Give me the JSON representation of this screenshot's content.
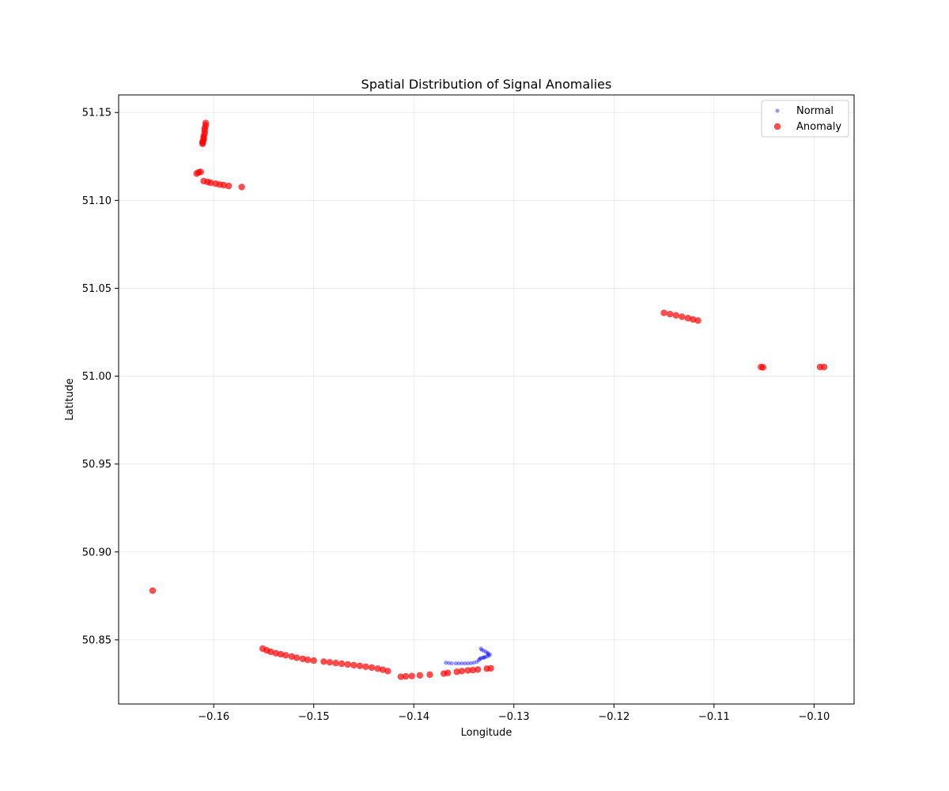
{
  "chart_data": {
    "type": "scatter",
    "title": "Spatial Distribution of Signal Anomalies",
    "xlabel": "Longitude",
    "ylabel": "Latitude",
    "xlim": [
      -0.1695,
      -0.096
    ],
    "ylim": [
      50.8135,
      51.16
    ],
    "xticks": [
      -0.16,
      -0.15,
      -0.14,
      -0.13,
      -0.12,
      -0.11,
      -0.1
    ],
    "xtick_labels": [
      "−0.16",
      "−0.15",
      "−0.14",
      "−0.13",
      "−0.12",
      "−0.11",
      "−0.10"
    ],
    "yticks": [
      50.85,
      50.9,
      50.95,
      51.0,
      51.05,
      51.1,
      51.15
    ],
    "ytick_labels": [
      "50.85",
      "50.90",
      "50.95",
      "51.00",
      "51.05",
      "51.10",
      "51.15"
    ],
    "grid": true,
    "legend": "top-right",
    "series": [
      {
        "name": "Normal",
        "color": "#0000ff",
        "alpha": 0.4,
        "marker_size": "small",
        "x": [
          -0.1368,
          -0.1365,
          -0.1362,
          -0.1358,
          -0.1355,
          -0.1352,
          -0.1349,
          -0.1346,
          -0.1343,
          -0.134,
          -0.1337,
          -0.1335,
          -0.1334,
          -0.1333,
          -0.1331,
          -0.1329,
          -0.1327,
          -0.1325,
          -0.1324,
          -0.1326,
          -0.1328,
          -0.133,
          -0.1332,
          -0.1333,
          -0.1326,
          -0.133
        ],
        "y": [
          50.837,
          50.8368,
          50.8366,
          50.8366,
          50.8366,
          50.8366,
          50.8366,
          50.8366,
          50.8367,
          50.837,
          50.8375,
          50.8385,
          50.8392,
          50.8395,
          50.8398,
          50.8401,
          50.8405,
          50.841,
          50.8416,
          50.8425,
          50.8432,
          50.8438,
          50.8443,
          50.845,
          50.842,
          50.84
        ]
      },
      {
        "name": "Anomaly",
        "color": "#ff0000",
        "alpha": 0.7,
        "marker_size": "large",
        "x": [
          -0.1608,
          -0.1608,
          -0.1609,
          -0.1609,
          -0.1609,
          -0.161,
          -0.161,
          -0.161,
          -0.1611,
          -0.1611,
          -0.1611,
          -0.1617,
          -0.1615,
          -0.1613,
          -0.161,
          -0.1606,
          -0.1603,
          -0.1598,
          -0.1594,
          -0.159,
          -0.1585,
          -0.1572,
          -0.1661,
          -0.1551,
          -0.1547,
          -0.1543,
          -0.1538,
          -0.1533,
          -0.1528,
          -0.1522,
          -0.1517,
          -0.1511,
          -0.1506,
          -0.15,
          -0.149,
          -0.1484,
          -0.1478,
          -0.1472,
          -0.1466,
          -0.146,
          -0.1454,
          -0.1448,
          -0.1442,
          -0.1436,
          -0.1431,
          -0.1426,
          -0.1413,
          -0.1408,
          -0.1402,
          -0.1394,
          -0.1384,
          -0.137,
          -0.1366,
          -0.1357,
          -0.1352,
          -0.1346,
          -0.1341,
          -0.1336,
          -0.1327,
          -0.1323,
          -0.115,
          -0.1144,
          -0.1138,
          -0.1132,
          -0.1126,
          -0.1121,
          -0.1116,
          -0.1053,
          -0.1051,
          -0.0994,
          -0.099
        ],
        "y": [
          51.144,
          51.1425,
          51.141,
          51.1395,
          51.138,
          51.1365,
          51.1355,
          51.1345,
          51.1335,
          51.1328,
          51.1322,
          51.1152,
          51.116,
          51.1162,
          51.111,
          51.1105,
          51.11,
          51.1095,
          51.109,
          51.1087,
          51.1082,
          51.1076,
          50.878,
          50.845,
          50.844,
          50.8432,
          50.8424,
          50.8418,
          50.8412,
          50.8405,
          50.8398,
          50.8392,
          50.8386,
          50.8382,
          50.8376,
          50.8372,
          50.8368,
          50.8364,
          50.836,
          50.8356,
          50.8352,
          50.8347,
          50.8342,
          50.8336,
          50.833,
          50.8322,
          50.829,
          50.8292,
          50.8294,
          50.8298,
          50.8302,
          50.8308,
          50.8312,
          50.8318,
          50.8322,
          50.8326,
          50.8328,
          50.8331,
          50.8336,
          50.8338,
          51.036,
          51.0353,
          51.0346,
          51.0338,
          51.033,
          51.0323,
          51.0316,
          51.0052,
          51.005,
          51.0052,
          51.0052
        ]
      }
    ]
  }
}
